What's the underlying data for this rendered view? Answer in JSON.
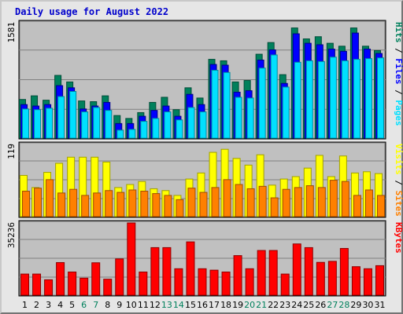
{
  "title": "Daily usage for August 2022",
  "colors": {
    "title": "#0000cc",
    "hits": "#00805c",
    "files": "#0000ff",
    "pages": "#00e0ff",
    "visits": "#ffff00",
    "sites": "#ff8000",
    "kbytes": "#ff0000",
    "weekend_day": "#00805c",
    "weekday_day": "#000000",
    "panel_bg": "#c0c0c0"
  },
  "chart_data": [
    {
      "type": "bar",
      "panel": "requests",
      "ymax_label": "1581",
      "ymax": 1581,
      "legend": [
        "Pages",
        "Files",
        "Hits"
      ],
      "series": [
        {
          "name": "Hits",
          "values": [
            530,
            580,
            520,
            860,
            770,
            510,
            500,
            580,
            310,
            270,
            350,
            490,
            560,
            390,
            690,
            550,
            1080,
            1060,
            770,
            790,
            1150,
            1310,
            870,
            1510,
            1360,
            1390,
            1300,
            1260,
            1510,
            1260,
            1200
          ]
        },
        {
          "name": "Files",
          "values": [
            460,
            440,
            460,
            720,
            690,
            400,
            440,
            490,
            200,
            200,
            300,
            380,
            440,
            300,
            600,
            460,
            1010,
            1000,
            630,
            650,
            1070,
            1210,
            750,
            1430,
            1300,
            1280,
            1220,
            1190,
            1440,
            1220,
            1160
          ]
        },
        {
          "name": "Pages",
          "values": [
            400,
            390,
            410,
            570,
            640,
            360,
            420,
            380,
            110,
            120,
            230,
            270,
            360,
            250,
            420,
            360,
            930,
            900,
            560,
            550,
            960,
            1140,
            700,
            1040,
            1060,
            1050,
            1110,
            1060,
            1080,
            1090,
            1100
          ]
        }
      ]
    },
    {
      "type": "bar",
      "panel": "visitors",
      "ymax_label": "119",
      "ymax": 119,
      "legend": [
        "Sites",
        "Visits"
      ],
      "series": [
        {
          "name": "Visits",
          "values": [
            68,
            48,
            73,
            88,
            98,
            98,
            98,
            90,
            48,
            53,
            58,
            46,
            43,
            35,
            62,
            72,
            106,
            111,
            96,
            85,
            102,
            52,
            62,
            66,
            80,
            101,
            66,
            100,
            72,
            74,
            71
          ]
        },
        {
          "name": "Sites",
          "values": [
            42,
            47,
            61,
            39,
            45,
            35,
            39,
            43,
            40,
            44,
            42,
            38,
            35,
            28,
            47,
            40,
            48,
            61,
            53,
            46,
            50,
            31,
            45,
            48,
            51,
            48,
            60,
            58,
            35,
            44,
            35
          ]
        }
      ]
    },
    {
      "type": "bar",
      "panel": "traffic",
      "ymax_label": "35236",
      "ymax": 35236,
      "legend": [
        "KBytes"
      ],
      "series": [
        {
          "name": "KBytes",
          "values": [
            10300,
            10300,
            7500,
            15900,
            11300,
            8300,
            15800,
            7800,
            17700,
            35236,
            11300,
            23200,
            23200,
            12900,
            26000,
            12900,
            12200,
            11300,
            19300,
            12900,
            21800,
            21800,
            10300,
            25000,
            23200,
            16000,
            16500,
            22800,
            13900,
            12900,
            14400
          ]
        }
      ]
    }
  ],
  "days": [
    "1",
    "2",
    "3",
    "4",
    "5",
    "6",
    "7",
    "8",
    "9",
    "10",
    "11",
    "12",
    "13",
    "14",
    "15",
    "16",
    "17",
    "18",
    "19",
    "20",
    "21",
    "22",
    "23",
    "24",
    "25",
    "26",
    "27",
    "28",
    "29",
    "30",
    "31"
  ],
  "weekend_days": [
    "6",
    "7",
    "13",
    "14",
    "20",
    "21",
    "27",
    "28"
  ]
}
